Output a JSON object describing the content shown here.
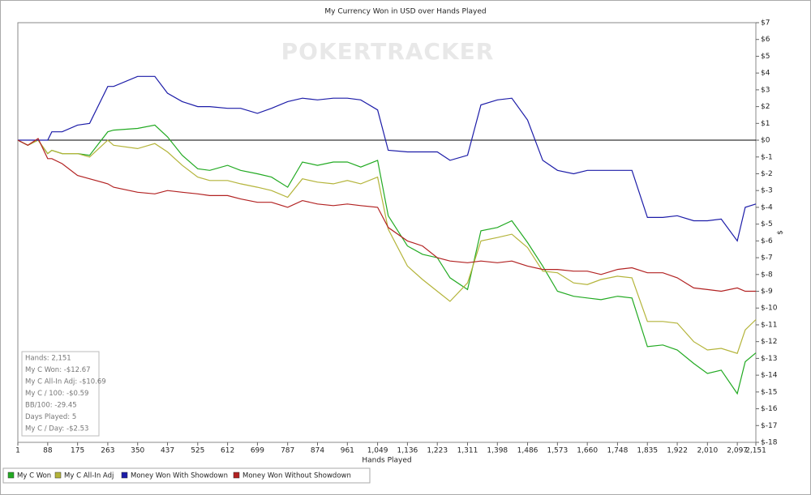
{
  "chart_data": {
    "type": "line",
    "title": "My Currency Won in USD over Hands Played",
    "watermark": "POKERTRACKER",
    "x_label": "Hands Played",
    "y_label": "$",
    "x": [
      1,
      30,
      60,
      88,
      100,
      130,
      175,
      210,
      263,
      280,
      350,
      400,
      437,
      480,
      525,
      560,
      612,
      650,
      699,
      740,
      787,
      830,
      874,
      920,
      961,
      1000,
      1049,
      1080,
      1136,
      1180,
      1223,
      1260,
      1311,
      1350,
      1398,
      1440,
      1486,
      1530,
      1573,
      1620,
      1660,
      1700,
      1748,
      1790,
      1835,
      1880,
      1922,
      1970,
      2010,
      2050,
      2097,
      2120,
      2151
    ],
    "series": [
      {
        "name": "My C Won",
        "color": "#22aa22",
        "values": [
          0,
          -0.3,
          0,
          -0.8,
          -0.6,
          -0.8,
          -0.8,
          -0.9,
          0.5,
          0.6,
          0.7,
          0.9,
          0.2,
          -0.9,
          -1.7,
          -1.8,
          -1.5,
          -1.8,
          -2.0,
          -2.2,
          -2.8,
          -1.3,
          -1.5,
          -1.3,
          -1.3,
          -1.6,
          -1.2,
          -4.5,
          -6.3,
          -6.8,
          -7.0,
          -8.2,
          -8.9,
          -5.4,
          -5.2,
          -4.8,
          -6.1,
          -7.5,
          -9.0,
          -9.3,
          -9.4,
          -9.5,
          -9.3,
          -9.4,
          -12.3,
          -12.2,
          -12.5,
          -13.3,
          -13.9,
          -13.7,
          -15.1,
          -13.2,
          -12.67
        ]
      },
      {
        "name": "My C All-In Adj",
        "color": "#b4b43a",
        "values": [
          0,
          -0.3,
          0,
          -0.8,
          -0.6,
          -0.8,
          -0.8,
          -1.0,
          0,
          -0.3,
          -0.5,
          -0.2,
          -0.7,
          -1.5,
          -2.2,
          -2.4,
          -2.4,
          -2.6,
          -2.8,
          -3.0,
          -3.4,
          -2.3,
          -2.5,
          -2.6,
          -2.4,
          -2.6,
          -2.2,
          -5.3,
          -7.5,
          -8.3,
          -9.0,
          -9.6,
          -8.5,
          -6.0,
          -5.8,
          -5.6,
          -6.4,
          -7.8,
          -7.9,
          -8.5,
          -8.6,
          -8.3,
          -8.1,
          -8.2,
          -10.8,
          -10.8,
          -10.9,
          -12.0,
          -12.5,
          -12.4,
          -12.7,
          -11.3,
          -10.69
        ]
      },
      {
        "name": "Money Won With Showdown",
        "color": "#1c1ca8",
        "values": [
          0,
          0,
          0,
          0,
          0.5,
          0.5,
          0.9,
          1.0,
          3.2,
          3.2,
          3.8,
          3.8,
          2.8,
          2.3,
          2.0,
          2.0,
          1.9,
          1.9,
          1.6,
          1.9,
          2.3,
          2.5,
          2.4,
          2.5,
          2.5,
          2.4,
          1.8,
          -0.6,
          -0.7,
          -0.7,
          -0.7,
          -1.2,
          -0.9,
          2.1,
          2.4,
          2.5,
          1.2,
          -1.2,
          -1.8,
          -2.0,
          -1.8,
          -1.8,
          -1.8,
          -1.8,
          -4.6,
          -4.6,
          -4.5,
          -4.8,
          -4.8,
          -4.7,
          -6.0,
          -4.0,
          -3.8
        ]
      },
      {
        "name": "Money Won Without Showdown",
        "color": "#b22222",
        "values": [
          0,
          -0.3,
          0.1,
          -1.1,
          -1.1,
          -1.4,
          -2.1,
          -2.3,
          -2.6,
          -2.8,
          -3.1,
          -3.2,
          -3.0,
          -3.1,
          -3.2,
          -3.3,
          -3.3,
          -3.5,
          -3.7,
          -3.7,
          -4.0,
          -3.6,
          -3.8,
          -3.9,
          -3.8,
          -3.9,
          -4.0,
          -5.2,
          -6.0,
          -6.3,
          -7.0,
          -7.2,
          -7.3,
          -7.2,
          -7.3,
          -7.2,
          -7.5,
          -7.7,
          -7.7,
          -7.8,
          -7.8,
          -8.0,
          -7.7,
          -7.6,
          -7.9,
          -7.9,
          -8.2,
          -8.8,
          -8.9,
          -9.0,
          -8.8,
          -9.0,
          -9.0
        ]
      }
    ],
    "xlim": [
      1,
      2151
    ],
    "xticks": [
      1,
      88,
      175,
      263,
      350,
      437,
      525,
      612,
      699,
      787,
      874,
      961,
      {
        "value": 1049,
        "label": "1,049"
      },
      {
        "value": 1136,
        "label": "1,136"
      },
      {
        "value": 1223,
        "label": "1,223"
      },
      {
        "value": 1311,
        "label": "1,311"
      },
      {
        "value": 1398,
        "label": "1,398"
      },
      {
        "value": 1486,
        "label": "1,486"
      },
      {
        "value": 1573,
        "label": "1,573"
      },
      {
        "value": 1660,
        "label": "1,660"
      },
      {
        "value": 1748,
        "label": "1,748"
      },
      {
        "value": 1835,
        "label": "1,835"
      },
      {
        "value": 1922,
        "label": "1,922"
      },
      {
        "value": 2010,
        "label": "2,010"
      },
      {
        "value": 2097,
        "label": "2,097"
      },
      {
        "value": 2151,
        "label": "2,151"
      }
    ],
    "ylim": [
      -18,
      7
    ],
    "yticks": [
      {
        "value": 7,
        "label": "$7"
      },
      {
        "value": 6,
        "label": "$6"
      },
      {
        "value": 5,
        "label": "$5"
      },
      {
        "value": 4,
        "label": "$4"
      },
      {
        "value": 3,
        "label": "$3"
      },
      {
        "value": 2,
        "label": "$2"
      },
      {
        "value": 1,
        "label": "$1"
      },
      {
        "value": 0,
        "label": "$0"
      },
      {
        "value": -1,
        "label": "$-1"
      },
      {
        "value": -2,
        "label": "$-2"
      },
      {
        "value": -3,
        "label": "$-3"
      },
      {
        "value": -4,
        "label": "$-4"
      },
      {
        "value": -5,
        "label": "$-5"
      },
      {
        "value": -6,
        "label": "$-6"
      },
      {
        "value": -7,
        "label": "$-7"
      },
      {
        "value": -8,
        "label": "$-8"
      },
      {
        "value": -9,
        "label": "$-9"
      },
      {
        "value": -10,
        "label": "$-10"
      },
      {
        "value": -11,
        "label": "$-11"
      },
      {
        "value": -12,
        "label": "$-12"
      },
      {
        "value": -13,
        "label": "$-13"
      },
      {
        "value": -14,
        "label": "$-14"
      },
      {
        "value": -15,
        "label": "$-15"
      },
      {
        "value": -16,
        "label": "$-16"
      },
      {
        "value": -17,
        "label": "$-17"
      },
      {
        "value": -18,
        "label": "$-18"
      }
    ],
    "zero_line": true,
    "grid": false,
    "legend": "bottom",
    "stats": [
      "Hands: 2,151",
      "My C Won: -$12.67",
      "My C All-In Adj: -$10.69",
      "My C / 100: -$0.59",
      "BB/100: -29.45",
      "Days Played: 5",
      "My C / Day: -$2.53"
    ]
  }
}
